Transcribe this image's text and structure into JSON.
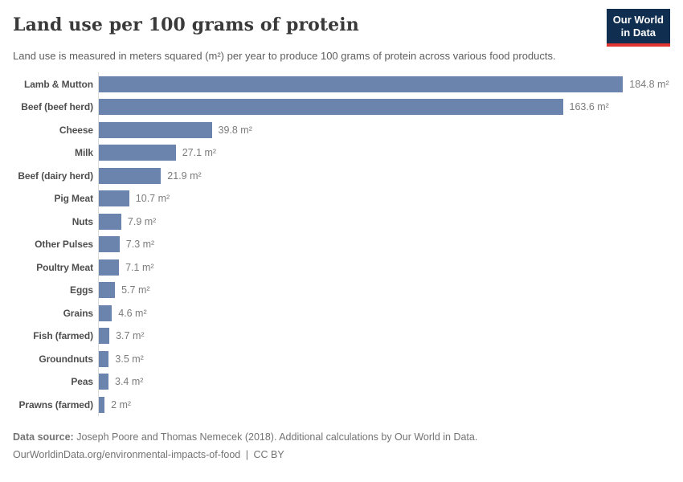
{
  "header": {
    "title": "Land use per 100 grams of protein",
    "logo": {
      "line1": "Our World",
      "line2": "in Data"
    }
  },
  "subtitle": "Land use is measured in meters squared (m²) per year to produce 100 grams of protein across various food products.",
  "chart_data": {
    "type": "bar",
    "orientation": "horizontal",
    "title": "Land use per 100 grams of protein",
    "unit": "m²",
    "categories": [
      "Lamb & Mutton",
      "Beef (beef herd)",
      "Cheese",
      "Milk",
      "Beef (dairy herd)",
      "Pig Meat",
      "Nuts",
      "Other Pulses",
      "Poultry Meat",
      "Eggs",
      "Grains",
      "Fish (farmed)",
      "Groundnuts",
      "Peas",
      "Prawns (farmed)"
    ],
    "values": [
      184.8,
      163.6,
      39.8,
      27.1,
      21.9,
      10.7,
      7.9,
      7.3,
      7.1,
      5.7,
      4.6,
      3.7,
      3.5,
      3.4,
      2
    ],
    "value_labels": [
      "184.8 m²",
      "163.6 m²",
      "39.8 m²",
      "27.1 m²",
      "21.9 m²",
      "10.7 m²",
      "7.9 m²",
      "7.3 m²",
      "7.1 m²",
      "5.7 m²",
      "4.6 m²",
      "3.7 m²",
      "3.5 m²",
      "3.4 m²",
      "2 m²"
    ],
    "xlim": [
      0,
      202
    ],
    "grid": false,
    "legend": "none",
    "value_label_position": "outside-end",
    "bar_color": "#6b84ad",
    "axis_line_color": "#dcdcdc"
  },
  "footer": {
    "source_label": "Data source:",
    "source_text": "Joseph Poore and Thomas Nemecek (2018). Additional calculations by Our World in Data.",
    "url": "OurWorldinData.org/environmental-impacts-of-food",
    "separator": "|",
    "license": "CC BY"
  },
  "colors": {
    "bar": "#6b84ad",
    "logo_bg": "#0f2e50",
    "logo_accent": "#e0352e",
    "title_text": "#3a3a3a",
    "muted_text": "#737373"
  }
}
